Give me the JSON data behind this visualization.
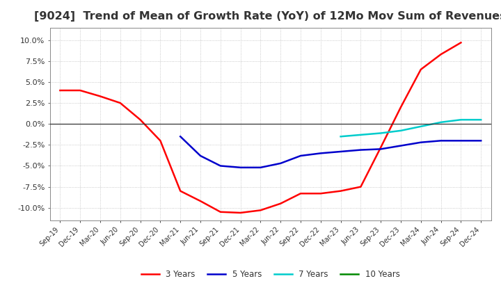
{
  "title": "[9024]  Trend of Mean of Growth Rate (YoY) of 12Mo Mov Sum of Revenues",
  "title_fontsize": 11.5,
  "title_color": "#333333",
  "background_color": "#ffffff",
  "grid_color": "#bbbbbb",
  "legend_labels": [
    "3 Years",
    "5 Years",
    "7 Years",
    "10 Years"
  ],
  "legend_colors": [
    "#ff0000",
    "#0000cc",
    "#00cccc",
    "#008800"
  ],
  "ylim": [
    -0.115,
    0.115
  ],
  "yticks": [
    -0.1,
    -0.075,
    -0.05,
    -0.025,
    0.0,
    0.025,
    0.05,
    0.075,
    0.1
  ],
  "x_labels": [
    "Sep-19",
    "Dec-19",
    "Mar-20",
    "Jun-20",
    "Sep-20",
    "Dec-20",
    "Mar-21",
    "Jun-21",
    "Sep-21",
    "Dec-21",
    "Mar-22",
    "Jun-22",
    "Sep-22",
    "Dec-22",
    "Mar-23",
    "Jun-23",
    "Sep-23",
    "Dec-23",
    "Mar-24",
    "Jun-24",
    "Sep-24",
    "Dec-24"
  ],
  "series_3y_x": [
    0,
    1,
    2,
    3,
    4,
    5,
    6,
    7,
    8,
    9,
    10,
    11,
    12,
    13,
    14,
    15,
    16,
    17,
    18,
    19,
    20
  ],
  "series_3y_y": [
    0.04,
    0.04,
    0.033,
    0.025,
    0.005,
    -0.02,
    -0.08,
    -0.092,
    -0.105,
    -0.106,
    -0.103,
    -0.095,
    -0.083,
    -0.083,
    -0.08,
    -0.075,
    -0.028,
    0.02,
    0.065,
    0.083,
    0.097
  ],
  "series_5y_x": [
    6,
    7,
    8,
    9,
    10,
    11,
    12,
    13,
    14,
    15,
    16,
    17,
    18,
    19,
    20,
    21
  ],
  "series_5y_y": [
    -0.015,
    -0.038,
    -0.05,
    -0.052,
    -0.052,
    -0.047,
    -0.038,
    -0.035,
    -0.033,
    -0.031,
    -0.03,
    -0.026,
    -0.022,
    -0.02,
    -0.02,
    -0.02
  ],
  "series_7y_x": [
    14,
    15,
    16,
    17,
    18,
    19,
    20,
    21
  ],
  "series_7y_y": [
    -0.015,
    -0.013,
    -0.011,
    -0.008,
    -0.003,
    0.002,
    0.005,
    0.005
  ],
  "series_10y_x": [],
  "series_10y_y": []
}
